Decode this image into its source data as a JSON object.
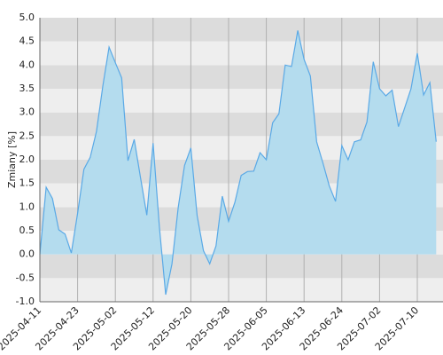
{
  "chart_data": {
    "type": "area",
    "y_label": "Zmiany [%]",
    "categories": [
      "2025-04-11",
      null,
      null,
      null,
      null,
      null,
      "2025-04-23",
      null,
      null,
      null,
      null,
      null,
      "2025-05-02",
      null,
      null,
      null,
      null,
      null,
      "2025-05-12",
      null,
      null,
      null,
      null,
      null,
      "2025-05-20",
      null,
      null,
      null,
      null,
      null,
      "2025-05-28",
      null,
      null,
      null,
      null,
      null,
      "2025-06-05",
      null,
      null,
      null,
      null,
      null,
      "2025-06-13",
      null,
      null,
      null,
      null,
      null,
      "2025-06-24",
      null,
      null,
      null,
      null,
      null,
      "2025-07-02",
      null,
      null,
      null,
      null,
      null,
      "2025-07-10",
      null,
      null,
      null
    ],
    "values": [
      0,
      1.42,
      1.18,
      0.52,
      0.43,
      0.03,
      0.87,
      1.8,
      2.05,
      2.6,
      3.55,
      4.38,
      4.05,
      3.73,
      1.98,
      2.43,
      1.62,
      0.83,
      2.35,
      0.58,
      -0.85,
      -0.2,
      1.0,
      1.88,
      2.25,
      0.82,
      0.08,
      -0.2,
      0.18,
      1.23,
      0.7,
      1.1,
      1.67,
      1.75,
      1.76,
      2.15,
      2.0,
      2.78,
      2.97,
      4.0,
      3.97,
      4.73,
      4.12,
      3.77,
      2.38,
      1.93,
      1.45,
      1.12,
      2.3,
      2.0,
      2.38,
      2.42,
      2.8,
      4.07,
      3.5,
      3.35,
      3.47,
      2.7,
      3.1,
      3.5,
      4.25,
      3.37,
      3.63,
      2.38
    ],
    "color": "#5aa9e6",
    "fill": "#b4dcee",
    "ylim": [
      -1.0,
      5.0
    ],
    "yticks": [
      {
        "value": -1.0,
        "label": "-1.0"
      },
      -0.5,
      {
        "value": 0.0,
        "label": "0.0"
      },
      0.5,
      {
        "value": 1.0,
        "label": "1.0"
      },
      1.5,
      {
        "value": 2.0,
        "label": "2.0"
      },
      2.5,
      {
        "value": 3.0,
        "label": "3.0"
      },
      3.5,
      {
        "value": 4.0,
        "label": "4.0"
      },
      4.5,
      {
        "value": 5.0,
        "label": "5.0"
      }
    ],
    "grid": true
  }
}
